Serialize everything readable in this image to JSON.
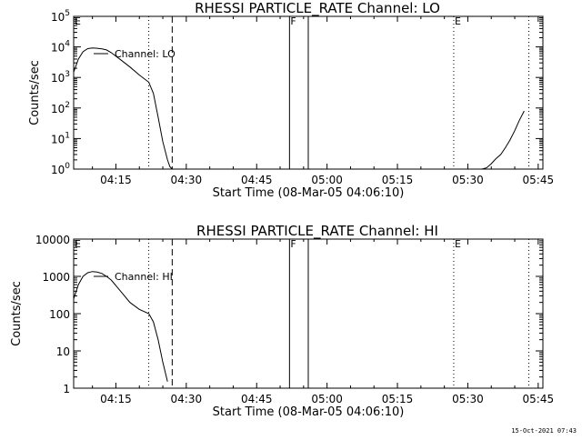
{
  "footer_timestamp": "15-Oct-2021 07:43",
  "colors": {
    "background": "#ffffff",
    "foreground": "#000000"
  },
  "chart_data": [
    {
      "type": "line",
      "title": "RHESSI PARTICLE_RATE Channel: LO",
      "xlabel": "Start Time (08-Mar-05 04:06:10)",
      "ylabel": "Counts/sec",
      "y_scale": "log",
      "ylim": [
        1,
        100000
      ],
      "xlim": [
        "04:06",
        "05:46"
      ],
      "x_ticks": [
        "04:15",
        "04:30",
        "04:45",
        "05:00",
        "05:15",
        "05:30",
        "05:45"
      ],
      "y_tick_labels": [
        "10^0",
        "10^1",
        "10^2",
        "10^3",
        "10^4",
        "10^5"
      ],
      "grid": false,
      "legend": {
        "position": "top-left",
        "entries": [
          "Channel: LO"
        ]
      },
      "series": [
        {
          "name": "Channel: LO",
          "segments": [
            {
              "x": [
                "04:06",
                "04:07",
                "04:08",
                "04:09",
                "04:10",
                "04:11",
                "04:12",
                "04:13",
                "04:14",
                "04:16",
                "04:18",
                "04:20",
                "04:22",
                "04:23",
                "04:24",
                "04:25",
                "04:26",
                "04:26:30",
                "04:27"
              ],
              "y": [
                1500,
                4000,
                7000,
                8800,
                9200,
                9000,
                8600,
                8000,
                6500,
                3800,
                2200,
                1200,
                700,
                300,
                50,
                8,
                2,
                1.2,
                1
              ]
            },
            {
              "x": [
                "05:33",
                "05:34",
                "05:35",
                "05:36",
                "05:37",
                "05:38",
                "05:39",
                "05:40",
                "05:41",
                "05:42"
              ],
              "y": [
                1,
                1.1,
                1.5,
                2.2,
                3,
                5,
                9,
                18,
                40,
                80
              ]
            }
          ]
        }
      ],
      "annotations": [
        {
          "text": "E",
          "x": "04:06"
        },
        {
          "text": "F",
          "x": "04:52"
        },
        {
          "text": "E",
          "x": "05:27"
        }
      ],
      "vertical_lines": [
        {
          "x": "04:22",
          "style": "dotted"
        },
        {
          "x": "04:27",
          "style": "dashed"
        },
        {
          "x": "04:52",
          "style": "solid"
        },
        {
          "x": "04:56",
          "style": "solid"
        },
        {
          "x": "05:27",
          "style": "dotted"
        },
        {
          "x": "05:43",
          "style": "dotted"
        }
      ]
    },
    {
      "type": "line",
      "title": "RHESSI PARTICLE_RATE Channel: HI",
      "xlabel": "Start Time (08-Mar-05 04:06:10)",
      "ylabel": "Counts/sec",
      "y_scale": "log",
      "ylim": [
        1,
        10000
      ],
      "xlim": [
        "04:06",
        "05:46"
      ],
      "x_ticks": [
        "04:15",
        "04:30",
        "04:45",
        "05:00",
        "05:15",
        "05:30",
        "05:45"
      ],
      "y_tick_labels": [
        "1",
        "10",
        "100",
        "1000",
        "10000"
      ],
      "grid": false,
      "legend": {
        "position": "top-left",
        "entries": [
          "Channel: HI"
        ]
      },
      "series": [
        {
          "name": "Channel: HI",
          "segments": [
            {
              "x": [
                "04:06",
                "04:07",
                "04:08",
                "04:09",
                "04:10",
                "04:11",
                "04:12",
                "04:13",
                "04:14",
                "04:16",
                "04:18",
                "04:20",
                "04:22",
                "04:23",
                "04:24",
                "04:25",
                "04:26"
              ],
              "y": [
                250,
                600,
                1000,
                1250,
                1350,
                1300,
                1200,
                1000,
                800,
                400,
                200,
                130,
                100,
                60,
                20,
                5,
                1.5
              ]
            }
          ]
        }
      ],
      "annotations": [
        {
          "text": "E",
          "x": "04:06"
        },
        {
          "text": "F",
          "x": "04:52"
        },
        {
          "text": "E",
          "x": "05:27"
        }
      ],
      "vertical_lines": [
        {
          "x": "04:22",
          "style": "dotted"
        },
        {
          "x": "04:27",
          "style": "dashed"
        },
        {
          "x": "04:52",
          "style": "solid"
        },
        {
          "x": "04:56",
          "style": "solid"
        },
        {
          "x": "05:27",
          "style": "dotted"
        },
        {
          "x": "05:43",
          "style": "dotted"
        }
      ]
    }
  ]
}
